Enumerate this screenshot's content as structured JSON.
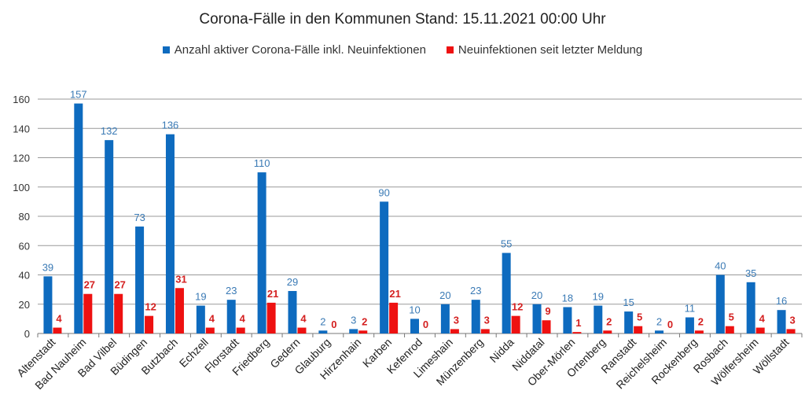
{
  "chart_data": {
    "type": "bar",
    "title": "Corona-Fälle in den Kommunen Stand: 15.11.2021 00:00 Uhr",
    "xlabel": "",
    "ylabel": "",
    "ylim": [
      0,
      160
    ],
    "yticks": [
      0,
      20,
      40,
      60,
      80,
      100,
      120,
      140,
      160
    ],
    "grid": true,
    "legend_position": "top",
    "categories": [
      "Altenstadt",
      "Bad Nauheim",
      "Bad Vilbel",
      "Büdingen",
      "Butzbach",
      "Echzell",
      "Florstadt",
      "Friedberg",
      "Gedern",
      "Glauburg",
      "Hirzenhain",
      "Karben",
      "Kefenrod",
      "Limeshain",
      "Münzenberg",
      "Nidda",
      "Niddatal",
      "Ober-Mörlen",
      "Ortenberg",
      "Ranstadt",
      "Reichelsheim",
      "Rockenberg",
      "Rosbach",
      "Wölfersheim",
      "Wöllstadt"
    ],
    "series": [
      {
        "name": "Anzahl aktiver Corona-Fälle inkl. Neuinfektionen",
        "color": "#0e6bbf",
        "label_color": "#3a7ab5",
        "values": [
          39,
          157,
          132,
          73,
          136,
          19,
          23,
          110,
          29,
          2,
          3,
          90,
          10,
          20,
          23,
          55,
          20,
          18,
          19,
          15,
          2,
          11,
          40,
          35,
          16
        ]
      },
      {
        "name": "Neuinfektionen seit letzter Meldung",
        "color": "#ee1111",
        "label_color": "#d42020",
        "values": [
          4,
          27,
          27,
          12,
          31,
          4,
          4,
          21,
          4,
          0,
          2,
          21,
          0,
          3,
          3,
          12,
          9,
          1,
          2,
          5,
          0,
          2,
          5,
          4,
          3
        ]
      }
    ]
  }
}
